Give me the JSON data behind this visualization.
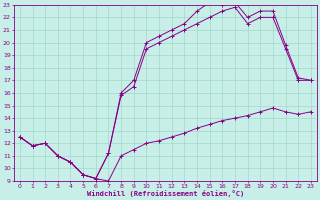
{
  "xlabel": "Windchill (Refroidissement éolien,°C)",
  "bg_color": "#c8eee8",
  "grid_color": "#a0d8cc",
  "line_color": "#880088",
  "xlim": [
    -0.5,
    23.5
  ],
  "ylim": [
    9,
    23
  ],
  "xticks": [
    0,
    1,
    2,
    3,
    4,
    5,
    6,
    7,
    8,
    9,
    10,
    11,
    12,
    13,
    14,
    15,
    16,
    17,
    18,
    19,
    20,
    21,
    22,
    23
  ],
  "yticks": [
    9,
    10,
    11,
    12,
    13,
    14,
    15,
    16,
    17,
    18,
    19,
    20,
    21,
    22,
    23
  ],
  "line1_x": [
    0,
    1,
    2,
    3,
    4,
    5,
    6,
    7,
    8,
    9,
    10,
    11,
    12,
    13,
    14,
    15,
    16,
    17,
    18,
    19,
    20,
    21,
    22,
    23
  ],
  "line1_y": [
    12.5,
    11.8,
    12.0,
    11.0,
    10.5,
    9.5,
    9.2,
    9.0,
    11.0,
    11.5,
    12.0,
    12.2,
    12.5,
    12.8,
    13.2,
    13.5,
    13.8,
    14.0,
    14.2,
    14.5,
    14.8,
    14.5,
    14.3,
    14.5
  ],
  "line2_x": [
    0,
    1,
    2,
    3,
    4,
    5,
    6,
    7,
    8,
    9,
    10,
    11,
    12,
    13,
    14,
    15,
    16,
    17,
    18,
    19,
    20,
    21,
    22,
    23
  ],
  "line2_y": [
    12.5,
    11.8,
    12.0,
    11.0,
    10.5,
    9.5,
    9.2,
    11.2,
    15.8,
    16.5,
    19.5,
    20.0,
    20.5,
    21.0,
    21.5,
    22.0,
    22.5,
    22.8,
    21.5,
    22.0,
    22.0,
    19.5,
    17.0,
    17.0
  ],
  "line3_x": [
    0,
    1,
    2,
    3,
    4,
    5,
    6,
    7,
    8,
    9,
    10,
    11,
    12,
    13,
    14,
    15,
    16,
    17,
    18,
    19,
    20,
    21,
    22,
    23
  ],
  "line3_y": [
    12.5,
    11.8,
    12.0,
    11.0,
    10.5,
    9.5,
    9.2,
    11.2,
    16.0,
    17.0,
    20.0,
    20.5,
    21.0,
    21.5,
    22.5,
    23.2,
    23.0,
    23.2,
    22.0,
    22.5,
    22.5,
    19.8,
    17.2,
    17.0
  ]
}
